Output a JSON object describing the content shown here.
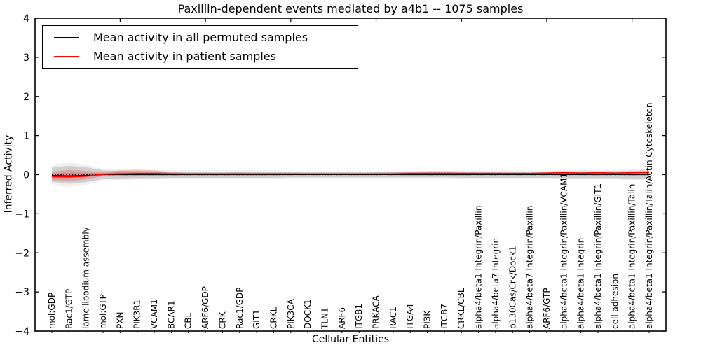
{
  "chart_data": {
    "type": "line",
    "title": "Paxillin-dependent events mediated by a4b1 -- 1075 samples",
    "xlabel": "Cellular Entities",
    "ylabel": "Inferred Activity",
    "ylim": [
      -4,
      4
    ],
    "grid": false,
    "legend": {
      "position": "upper left"
    },
    "ytick_values": [
      4,
      3,
      2,
      1,
      0,
      -1,
      -2,
      -3,
      -4
    ],
    "ytick_labels": [
      "4",
      "3",
      "2",
      "1",
      "0",
      "−1",
      "−2",
      "−3",
      "−4"
    ],
    "top_tick_indices": [
      4,
      9,
      14,
      19,
      24,
      29,
      34
    ],
    "categories": [
      "mol:GDP",
      "Rac1/GTP",
      "lamellipodium assembly",
      "mol:GTP",
      "PXN",
      "PIK3R1",
      "VCAM1",
      "BCAR1",
      "CBL",
      "ARF6/GDP",
      "CRK",
      "Rac1/GDP",
      "GIT1",
      "CRKL",
      "PIK3CA",
      "DOCK1",
      "TLN1",
      "ARF6",
      "ITGB1",
      "PRKACA",
      "RAC1",
      "ITGA4",
      "PI3K",
      "ITGB7",
      "CRKL/CBL",
      "alpha4/beta1 Integrin/Paxillin",
      "alpha4/beta7 Integrin",
      "p130Cas/Crk/Dock1",
      "alpha4/beta7 Integrin/Paxillin",
      "ARF6/GTP",
      "alpha4/beta1 Integrin/Paxillin/VCAM1",
      "alpha4/beta1 Integrin",
      "alpha4/beta1 Integrin/Paxillin/GIT1",
      "cell adhesion",
      "alpha4/beta1 Integrin/Paxillin/Talin",
      "alpha4/beta1 Integrin/Paxillin/Talin/Actin Cytoskeleton"
    ],
    "series": [
      {
        "name": "Mean activity in all permuted samples",
        "color": "#000000",
        "values": [
          -0.02,
          -0.03,
          -0.02,
          0,
          0,
          0,
          0,
          0,
          0,
          0,
          0,
          0,
          0,
          0,
          0,
          0,
          0,
          0,
          0,
          0,
          0,
          0,
          0,
          0,
          0,
          0,
          0,
          0,
          0,
          0,
          0,
          0,
          0,
          0,
          0,
          0
        ]
      },
      {
        "name": "Mean activity in patient samples",
        "color": "#ff0000",
        "values": [
          -0.05,
          -0.06,
          -0.04,
          0.01,
          0.02,
          0.03,
          0.03,
          0.02,
          0.02,
          0.02,
          0.02,
          0.02,
          0.02,
          0.02,
          0.02,
          0.02,
          0.02,
          0.02,
          0.02,
          0.02,
          0.02,
          0.03,
          0.03,
          0.03,
          0.03,
          0.03,
          0.03,
          0.03,
          0.03,
          0.04,
          0.05,
          0.04,
          0.05,
          0.04,
          0.05,
          0.06
        ]
      }
    ],
    "bands": [
      {
        "name": "permuted samples activity range",
        "color": "#888888",
        "upper": [
          0.18,
          0.23,
          0.19,
          0.11,
          0.1,
          0.09,
          0.09,
          0.08,
          0.08,
          0.08,
          0.08,
          0.08,
          0.08,
          0.08,
          0.07,
          0.07,
          0.07,
          0.07,
          0.07,
          0.07,
          0.07,
          0.07,
          0.07,
          0.07,
          0.08,
          0.08,
          0.08,
          0.08,
          0.08,
          0.08,
          0.09,
          0.09,
          0.09,
          0.09,
          0.1,
          0.11
        ],
        "lower": [
          -0.18,
          -0.23,
          -0.19,
          -0.11,
          -0.1,
          -0.09,
          -0.09,
          -0.08,
          -0.08,
          -0.08,
          -0.08,
          -0.08,
          -0.08,
          -0.08,
          -0.07,
          -0.07,
          -0.07,
          -0.07,
          -0.07,
          -0.07,
          -0.07,
          -0.07,
          -0.07,
          -0.07,
          -0.08,
          -0.08,
          -0.08,
          -0.08,
          -0.08,
          -0.08,
          -0.09,
          -0.09,
          -0.09,
          -0.09,
          -0.1,
          -0.11
        ]
      },
      {
        "name": "patient samples activity range",
        "color": "#ff0000",
        "upper": [
          0.08,
          0.12,
          0.1,
          0.06,
          0.11,
          0.13,
          0.11,
          0.07,
          0.05,
          0.05,
          0.05,
          0.06,
          0.05,
          0.05,
          0.05,
          0.04,
          0.04,
          0.04,
          0.04,
          0.05,
          0.06,
          0.08,
          0.09,
          0.09,
          0.08,
          0.07,
          0.07,
          0.06,
          0.06,
          0.06,
          0.08,
          0.07,
          0.08,
          0.07,
          0.08,
          0.09
        ],
        "lower": [
          -0.14,
          -0.16,
          -0.12,
          -0.04,
          -0.05,
          -0.05,
          -0.04,
          -0.03,
          -0.02,
          -0.02,
          -0.02,
          -0.02,
          -0.02,
          -0.02,
          -0.01,
          -0.01,
          -0.01,
          -0.01,
          -0.01,
          -0.01,
          -0.01,
          -0.02,
          -0.02,
          -0.02,
          -0.02,
          -0.01,
          -0.01,
          -0.01,
          -0.01,
          -0.01,
          -0.01,
          -0.01,
          -0.02,
          -0.01,
          -0.02,
          -0.02
        ]
      }
    ],
    "zero_line": {
      "value": 0,
      "style": "dotted",
      "color": "#000000"
    }
  }
}
